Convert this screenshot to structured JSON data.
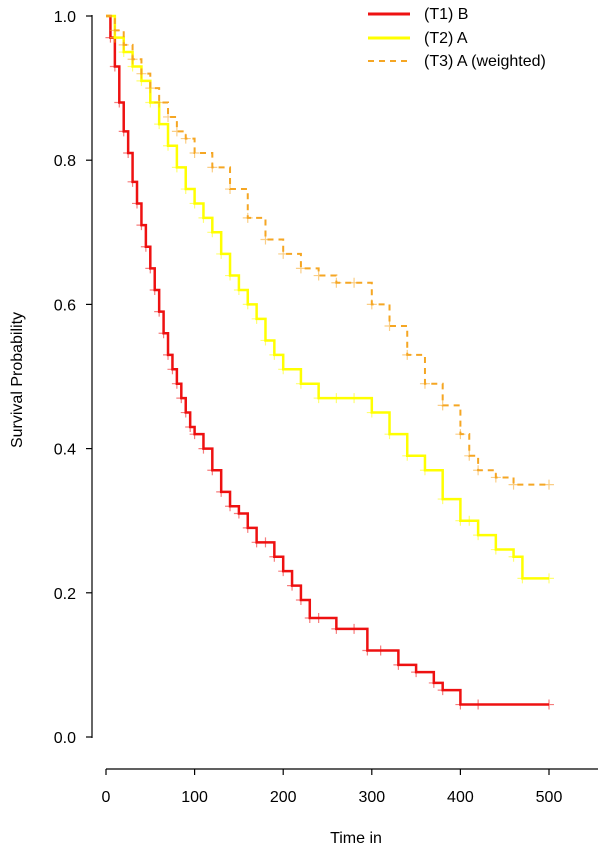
{
  "chart_data": {
    "type": "line",
    "subtype": "kaplan-meier step survival curves with censor marks",
    "xlabel": "Time in",
    "ylabel": "Survival Probability",
    "xlim": [
      0,
      500
    ],
    "ylim": [
      0.0,
      1.0
    ],
    "x_ticks": [
      0,
      100,
      200,
      300,
      400,
      500
    ],
    "y_ticks": [
      0.0,
      0.2,
      0.4,
      0.6,
      0.8,
      1.0
    ],
    "x_tick_labels": [
      "0",
      "100",
      "200",
      "300",
      "400",
      "500"
    ],
    "y_tick_labels": [
      "0.0",
      "0.2",
      "0.4",
      "0.6",
      "0.8",
      "1.0"
    ],
    "grid": false,
    "legend_position": "top-right",
    "series": [
      {
        "name": "(T1) B",
        "color": "#ee1111",
        "line_style": "solid",
        "x": [
          0,
          5,
          10,
          15,
          20,
          25,
          30,
          35,
          40,
          45,
          50,
          55,
          60,
          65,
          70,
          75,
          80,
          85,
          90,
          95,
          100,
          110,
          120,
          130,
          140,
          150,
          160,
          170,
          180,
          190,
          200,
          210,
          220,
          230,
          240,
          260,
          280,
          295,
          310,
          330,
          350,
          370,
          380,
          400,
          420,
          500
        ],
        "y": [
          1.0,
          0.97,
          0.93,
          0.88,
          0.84,
          0.81,
          0.77,
          0.74,
          0.71,
          0.68,
          0.65,
          0.62,
          0.59,
          0.56,
          0.53,
          0.51,
          0.49,
          0.47,
          0.45,
          0.43,
          0.42,
          0.4,
          0.37,
          0.34,
          0.32,
          0.31,
          0.29,
          0.27,
          0.27,
          0.25,
          0.23,
          0.21,
          0.19,
          0.165,
          0.165,
          0.15,
          0.15,
          0.12,
          0.12,
          0.1,
          0.09,
          0.075,
          0.065,
          0.045,
          0.045,
          0.045
        ]
      },
      {
        "name": "(T2) A",
        "color": "#ffff00",
        "line_style": "solid",
        "x": [
          0,
          10,
          20,
          30,
          40,
          50,
          60,
          70,
          80,
          90,
          100,
          110,
          120,
          130,
          140,
          150,
          160,
          170,
          180,
          190,
          200,
          220,
          240,
          260,
          280,
          300,
          320,
          340,
          360,
          380,
          400,
          410,
          420,
          440,
          460,
          470,
          500
        ],
        "y": [
          1.0,
          0.97,
          0.95,
          0.93,
          0.91,
          0.88,
          0.85,
          0.82,
          0.79,
          0.76,
          0.74,
          0.72,
          0.7,
          0.67,
          0.64,
          0.62,
          0.6,
          0.58,
          0.55,
          0.53,
          0.51,
          0.49,
          0.47,
          0.47,
          0.47,
          0.45,
          0.42,
          0.39,
          0.37,
          0.33,
          0.3,
          0.3,
          0.28,
          0.26,
          0.25,
          0.22,
          0.22
        ]
      },
      {
        "name": "(T3) A (weighted)",
        "color": "#f5a623",
        "line_style": "dashed",
        "x": [
          0,
          10,
          20,
          30,
          40,
          50,
          60,
          70,
          80,
          90,
          100,
          120,
          140,
          160,
          180,
          200,
          220,
          240,
          260,
          280,
          300,
          320,
          340,
          360,
          380,
          400,
          410,
          420,
          440,
          460,
          500
        ],
        "y": [
          1.0,
          0.98,
          0.96,
          0.94,
          0.92,
          0.9,
          0.88,
          0.86,
          0.84,
          0.83,
          0.81,
          0.79,
          0.76,
          0.72,
          0.69,
          0.67,
          0.65,
          0.64,
          0.63,
          0.63,
          0.6,
          0.57,
          0.53,
          0.49,
          0.46,
          0.42,
          0.39,
          0.37,
          0.36,
          0.35,
          0.35
        ]
      }
    ]
  }
}
